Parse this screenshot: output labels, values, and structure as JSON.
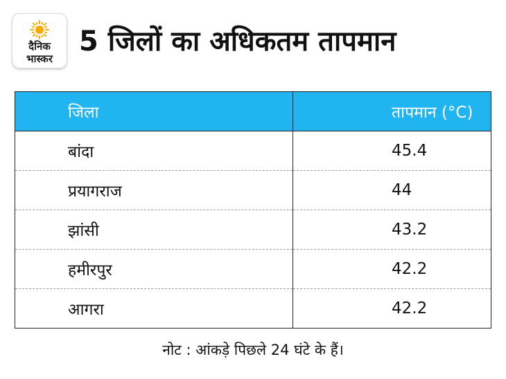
{
  "logo": {
    "line1": "दैनिक",
    "line2": "भास्कर",
    "sun_color": "#f5a800"
  },
  "title": "5 जिलों का अधिकतम तापमान",
  "table": {
    "headers": [
      "जिला",
      "तापमान (°C)"
    ],
    "header_color": "#20b4f0",
    "rows": [
      [
        "बांदा",
        "45.4"
      ],
      [
        "प्रयागराज",
        "44"
      ],
      [
        "झांसी",
        "43.2"
      ],
      [
        "हमीरपुर",
        "42.2"
      ],
      [
        "आगरा",
        "42.2"
      ]
    ]
  },
  "note": "नोट : आंकड़े पिछले 24 घंटे के हैं।"
}
